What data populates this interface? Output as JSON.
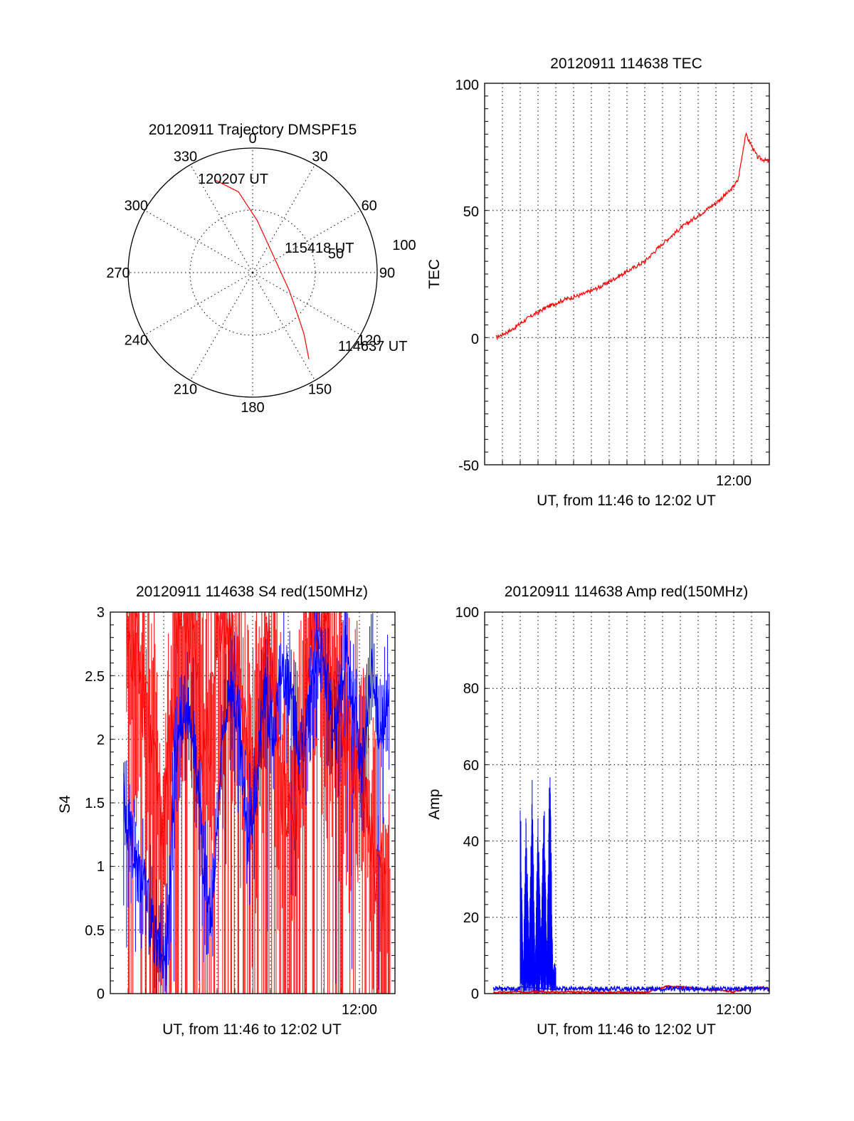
{
  "chart_data": [
    {
      "type": "polar",
      "title": "20120911 Trajectory DMSPF15",
      "angle_labels": [
        "0",
        "30",
        "60",
        "90",
        "120",
        "150",
        "180",
        "210",
        "240",
        "270",
        "300",
        "330"
      ],
      "radial_labels": [
        "50",
        "100"
      ],
      "radial_range": [
        0,
        100
      ],
      "grid": true,
      "series": [
        {
          "color": "#ff0000",
          "points": [
            {
              "azimuth": 147,
              "radius": 83
            },
            {
              "azimuth": 140,
              "radius": 64
            },
            {
              "azimuth": 130,
              "radius": 45
            },
            {
              "azimuth": 115,
              "radius": 32
            },
            {
              "azimuth": 85,
              "radius": 22
            },
            {
              "azimuth": 40,
              "radius": 23
            },
            {
              "azimuth": 5,
              "radius": 42
            },
            {
              "azimuth": -10,
              "radius": 66
            },
            {
              "azimuth": -22,
              "radius": 80
            }
          ]
        }
      ],
      "annotations": [
        "120207 UT",
        "115418 UT",
        "114637 UT"
      ]
    },
    {
      "type": "line",
      "title": "20120911 114638 TEC",
      "ylabel": "TEC",
      "xlabel": "UT, from 11:46 to 12:02 UT",
      "xticks": [
        "12:00"
      ],
      "yticks": [
        "100",
        "50",
        "0",
        "-50"
      ],
      "xlim": [
        "11:46",
        "12:02"
      ],
      "ylim": [
        -50,
        100
      ],
      "grid": true,
      "series": [
        {
          "color": "#ff0000",
          "x": [
            "11:46:38",
            "11:47:30",
            "11:48:30",
            "11:49:30",
            "11:50:30",
            "11:51:30",
            "11:52:30",
            "11:53:30",
            "11:54:30",
            "11:55:00",
            "11:56:00",
            "11:57:00",
            "11:58:00",
            "11:59:00",
            "11:59:50",
            "12:00:15",
            "12:00:40",
            "12:01:20",
            "12:02:00"
          ],
          "y": [
            0,
            3,
            8,
            12,
            15,
            17,
            20,
            24,
            28,
            30,
            37,
            43,
            48,
            53,
            58,
            62,
            80,
            71,
            69
          ]
        }
      ]
    },
    {
      "type": "line",
      "title": "20120911 114638 S4 red(150MHz)",
      "ylabel": "S4",
      "xlabel": "UT, from 11:46 to 12:02 UT",
      "xticks": [
        "12:00"
      ],
      "yticks": [
        "3",
        "2.5",
        "2",
        "1.5",
        "1",
        "0.5",
        "0"
      ],
      "xlim": [
        "11:46",
        "12:02"
      ],
      "ylim": [
        0,
        3
      ],
      "grid": true,
      "series": [
        {
          "color": "#0000ff",
          "x": [
            "11:46:45",
            "11:47:05",
            "11:47:25",
            "11:47:50",
            "11:48:15",
            "11:48:40",
            "11:49:10",
            "11:49:40",
            "11:50:10",
            "11:50:40",
            "11:51:10",
            "11:51:40",
            "11:52:10",
            "11:52:40",
            "11:53:10",
            "11:53:40",
            "11:54:10",
            "11:54:40",
            "11:55:10",
            "11:55:40",
            "11:56:10",
            "11:56:40",
            "11:57:10",
            "11:57:40",
            "11:58:10",
            "11:58:40",
            "11:59:10",
            "11:59:40",
            "12:00:10",
            "12:00:40",
            "12:01:10",
            "12:01:40"
          ],
          "y": [
            1.5,
            1.3,
            1.0,
            0.9,
            0.6,
            0.35,
            0.3,
            1.9,
            2.3,
            2.1,
            1.1,
            0.5,
            1.7,
            2.5,
            2.2,
            1.2,
            1.6,
            2.4,
            2.0,
            2.6,
            2.3,
            1.9,
            2.2,
            2.8,
            2.4,
            2.0,
            2.7,
            2.2,
            1.8,
            2.5,
            2.1,
            2.3
          ]
        },
        {
          "color": "#ff0000",
          "x": [
            "11:46:55",
            "11:47:35",
            "11:48:20",
            "11:49:00",
            "11:49:45",
            "11:50:30",
            "11:51:20",
            "11:52:15",
            "11:53:10",
            "11:54:00",
            "11:54:50",
            "11:55:40",
            "11:56:30",
            "11:57:20",
            "11:58:10",
            "11:59:00",
            "11:59:50",
            "12:00:40",
            "12:01:30"
          ],
          "y": [
            3.0,
            2.6,
            2.0,
            1.2,
            2.8,
            3.0,
            1.8,
            3.0,
            2.5,
            1.5,
            2.9,
            1.5,
            1.5,
            3.0,
            2.7,
            2.2,
            1.8,
            1.2,
            0.8
          ]
        }
      ]
    },
    {
      "type": "line",
      "title": "20120911 114638 Amp red(150MHz)",
      "ylabel": "Amp",
      "xlabel": "UT, from 11:46 to 12:02 UT",
      "xticks": [
        "12:00"
      ],
      "yticks": [
        "100",
        "80",
        "60",
        "40",
        "20",
        "0"
      ],
      "xlim": [
        "11:46",
        "12:02"
      ],
      "ylim": [
        0,
        100
      ],
      "grid": true,
      "series": [
        {
          "color": "#0000ff",
          "x": [
            "11:46:30",
            "11:47:30",
            "11:48:00",
            "11:48:10",
            "11:48:20",
            "11:48:30",
            "11:48:40",
            "11:48:50",
            "11:49:00",
            "11:49:10",
            "11:49:20",
            "11:49:30",
            "11:49:40",
            "11:49:50",
            "11:50:00",
            "11:50:30",
            "11:52:00",
            "11:54:00",
            "11:56:00",
            "11:58:00",
            "12:00:00",
            "12:02:00"
          ],
          "y": [
            1,
            2,
            57,
            5,
            50,
            12,
            58,
            8,
            48,
            14,
            55,
            10,
            66,
            4,
            2,
            1,
            1,
            1,
            1,
            1,
            1,
            1
          ]
        },
        {
          "color": "#ff0000",
          "x": [
            "11:46:30",
            "11:48:30",
            "11:50:00",
            "11:55:00",
            "11:56:20",
            "12:00:00",
            "12:01:00",
            "12:02:00"
          ],
          "y": [
            0.3,
            0.5,
            0.4,
            0.3,
            2,
            0.5,
            1.5,
            1.5
          ]
        }
      ]
    }
  ]
}
